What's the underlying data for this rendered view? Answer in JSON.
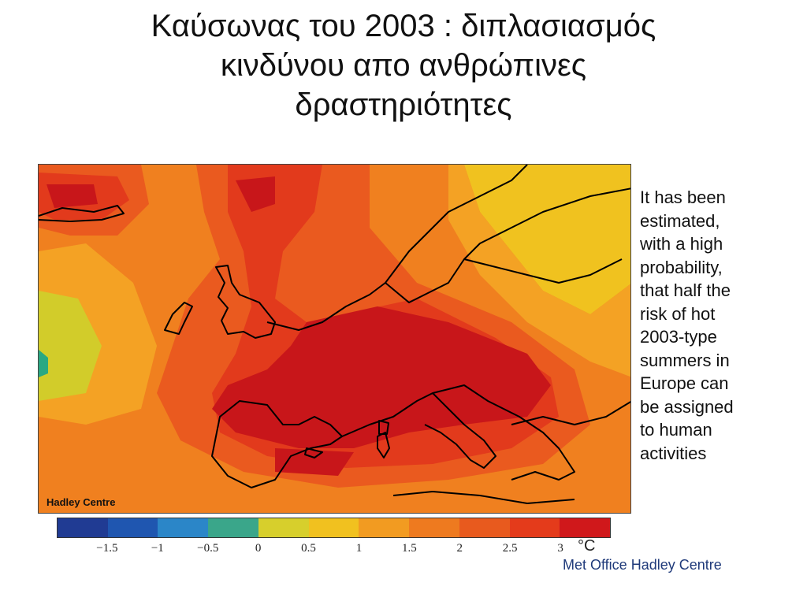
{
  "slide": {
    "title_lines": [
      "Καύσωνας του 2003 : διπλασιασμός",
      "κινδύνου απο ανθρώπινες",
      "δραστηριότητες"
    ]
  },
  "map": {
    "credit_label": "Hadley Centre",
    "colors": {
      "dark_red": "#c8161a",
      "red": "#e23a1c",
      "red_orange": "#ea5a1f",
      "orange": "#f0801f",
      "light_orange": "#f4a224",
      "yellow": "#f0c21f",
      "yellow_green": "#d2cc2a",
      "teal": "#2aa882",
      "coastline": "#000000"
    }
  },
  "side_text": {
    "lines": [
      "It has been",
      "estimated,",
      "with a high",
      "probability,",
      "that half the",
      "risk of hot",
      "2003-type",
      "summers in",
      "Europe can",
      "be assigned",
      "to human",
      "activities"
    ]
  },
  "colorbar": {
    "colors": [
      "#203b93",
      "#1f56b0",
      "#2b86c8",
      "#3aa68a",
      "#d7cf2c",
      "#f1c11f",
      "#f29b21",
      "#ee7a1f",
      "#e85a1e",
      "#e43b1b",
      "#d0181b"
    ],
    "tick_labels": [
      "−1.5",
      "−1",
      "−0.5",
      "0",
      "0.5",
      "1",
      "1.5",
      "2",
      "2.5",
      "3"
    ],
    "unit": "°C"
  },
  "footer": {
    "credit": "Met Office Hadley Centre"
  }
}
